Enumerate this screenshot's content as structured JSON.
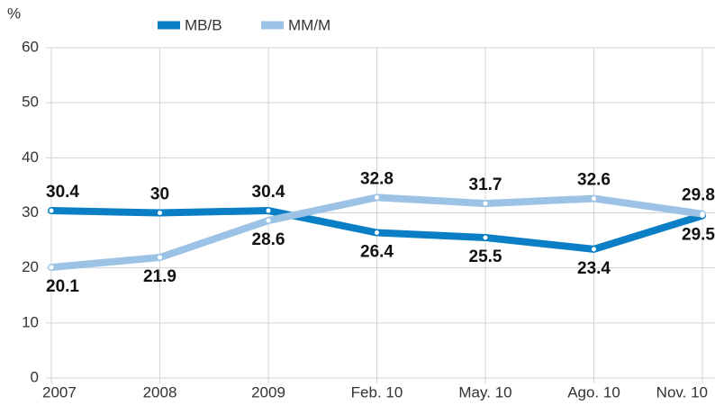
{
  "chart_data": {
    "type": "line",
    "y_label": "%",
    "categories": [
      "2007",
      "2008",
      "2009",
      "Feb. 10",
      "May. 10",
      "Ago. 10",
      "Nov. 10"
    ],
    "series": [
      {
        "name": "MB/B",
        "color": "#0a7fc6",
        "values": [
          30.4,
          30.0,
          30.4,
          26.4,
          25.5,
          23.4,
          29.5
        ]
      },
      {
        "name": "MM/M",
        "color": "#9cc3e6",
        "values": [
          20.1,
          21.9,
          28.6,
          32.8,
          31.7,
          32.6,
          29.8
        ]
      }
    ],
    "ylim": [
      0,
      60
    ],
    "yticks": [
      0,
      10,
      20,
      30,
      40,
      50,
      60
    ],
    "grid": true,
    "legend": "top",
    "data_labels": true
  }
}
